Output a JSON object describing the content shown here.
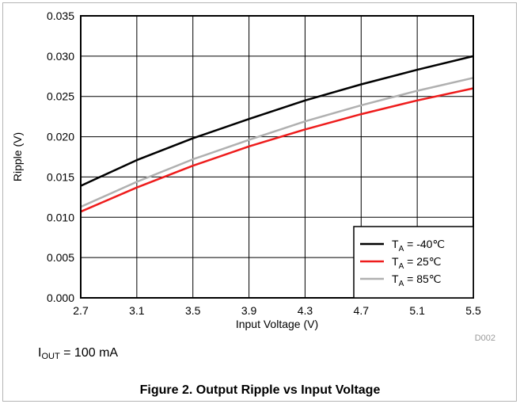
{
  "chart_data": {
    "type": "line",
    "xlabel": "Input Voltage (V)",
    "ylabel": "Ripple (V)",
    "xlim": [
      2.7,
      5.5
    ],
    "ylim": [
      0.0,
      0.035
    ],
    "x_ticks": [
      "2.7",
      "3.1",
      "3.5",
      "3.9",
      "4.3",
      "4.7",
      "5.1",
      "5.5"
    ],
    "y_ticks": [
      "0.000",
      "0.005",
      "0.010",
      "0.015",
      "0.020",
      "0.025",
      "0.030",
      "0.035"
    ],
    "grid": true,
    "legend_position": "bottom-right",
    "series": [
      {
        "name_main": "T",
        "name_sub": "A",
        "name_rest": " = -40℃",
        "color": "#000000",
        "x": [
          2.7,
          3.1,
          3.5,
          3.9,
          4.3,
          4.7,
          5.1,
          5.5
        ],
        "y": [
          0.0139,
          0.0171,
          0.0198,
          0.0222,
          0.0245,
          0.0265,
          0.0283,
          0.03
        ]
      },
      {
        "name_main": "T",
        "name_sub": "A",
        "name_rest": " = 25℃",
        "color": "#ee1c1c",
        "x": [
          2.7,
          3.1,
          3.5,
          3.9,
          4.3,
          4.7,
          5.1,
          5.5
        ],
        "y": [
          0.0107,
          0.0137,
          0.0164,
          0.0188,
          0.0209,
          0.0228,
          0.0245,
          0.026
        ]
      },
      {
        "name_main": "T",
        "name_sub": "A",
        "name_rest": " = 85℃",
        "color": "#b0b0b0",
        "x": [
          2.7,
          3.1,
          3.5,
          3.9,
          4.3,
          4.7,
          5.1,
          5.5
        ],
        "y": [
          0.0113,
          0.0144,
          0.0172,
          0.0196,
          0.0219,
          0.0239,
          0.0257,
          0.0273
        ]
      }
    ]
  },
  "figure_code": "D002",
  "condition": {
    "main": "I",
    "sub": "OUT",
    "rest": " = 100 mA"
  },
  "caption": "Figure 2. Output Ripple vs Input Voltage"
}
